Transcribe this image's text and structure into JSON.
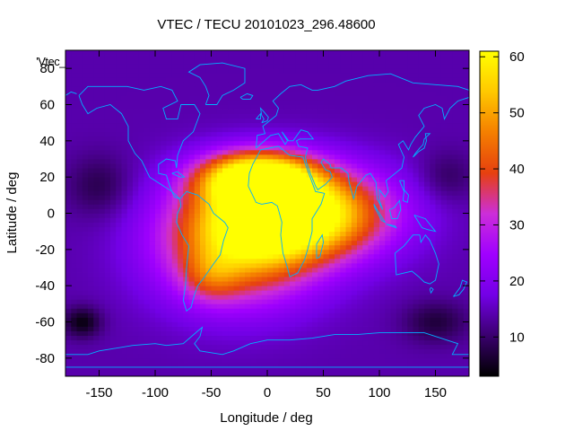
{
  "chart_data": {
    "type": "heatmap",
    "title": "VTEC / TECU 20101023_296.48600",
    "xlabel": "Longitude / deg",
    "ylabel": "Latitude / deg",
    "key_label": "'Vtec_",
    "xlim": [
      -180,
      180
    ],
    "ylim": [
      -90,
      90
    ],
    "x_ticks": [
      -150,
      -100,
      -50,
      0,
      50,
      100,
      150
    ],
    "y_ticks": [
      80,
      60,
      40,
      20,
      0,
      -20,
      -40,
      -60,
      -80
    ],
    "colorbar": {
      "range": [
        3,
        61
      ],
      "ticks": [
        10,
        20,
        30,
        40,
        50,
        60
      ],
      "colormap": [
        "#000000",
        "#3a006e",
        "#7300e6",
        "#a000ff",
        "#cc2ed9",
        "#e6400f",
        "#f57f00",
        "#ffc800",
        "#ffff00"
      ]
    },
    "map_overlay": "coastlines",
    "overlay_color": "#00b0ff",
    "field": {
      "background_tecu": 14,
      "peaks": [
        {
          "lon": 25,
          "lat": 0,
          "tecu": 54,
          "lon_spread": 55,
          "lat_spread": 17
        },
        {
          "lon": -10,
          "lat": 20,
          "tecu": 46,
          "lon_spread": 35,
          "lat_spread": 10
        },
        {
          "lon": -25,
          "lat": -20,
          "tecu": 32,
          "lon_spread": 50,
          "lat_spread": 22
        },
        {
          "lon": -50,
          "lat": -35,
          "tecu": 10,
          "lon_spread": 18,
          "lat_spread": 10
        }
      ],
      "lows": [
        {
          "lon": -165,
          "lat": -60,
          "tecu": -10,
          "lon_spread": 12,
          "lat_spread": 6
        },
        {
          "lon": 150,
          "lat": -60,
          "tecu": -7,
          "lon_spread": 20,
          "lat_spread": 8
        },
        {
          "lon": -150,
          "lat": 15,
          "tecu": -6,
          "lon_spread": 20,
          "lat_spread": 12
        },
        {
          "lon": 160,
          "lat": 20,
          "tecu": -5,
          "lon_spread": 18,
          "lat_spread": 10
        }
      ]
    }
  }
}
